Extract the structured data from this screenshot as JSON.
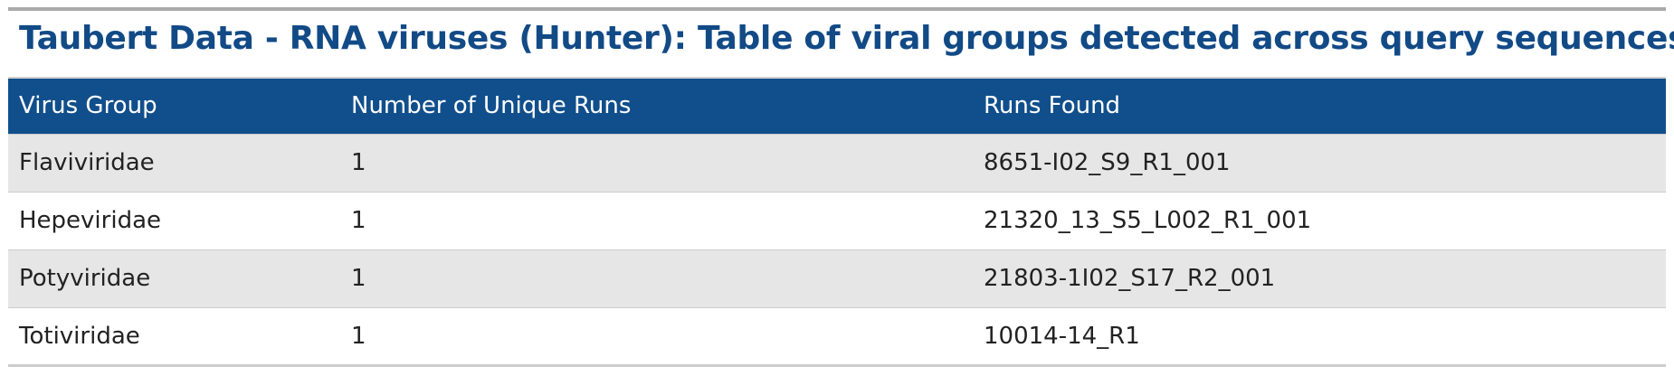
{
  "header": {
    "title": "Taubert Data - RNA viruses (Hunter): Table of viral groups detected across query sequences"
  },
  "table": {
    "columns": [
      "Virus Group",
      "Number of Unique Runs",
      "Runs Found"
    ],
    "rows": [
      [
        "Flaviviridae",
        1,
        "8651-I02_S9_R1_001"
      ],
      [
        "Hepeviridae",
        1,
        "21320_13_S5_L002_R1_001"
      ],
      [
        "Potyviridae",
        1,
        "21803-1I02_S17_R2_001"
      ],
      [
        "Totiviridae",
        1,
        "10014-14_R1"
      ]
    ]
  }
}
